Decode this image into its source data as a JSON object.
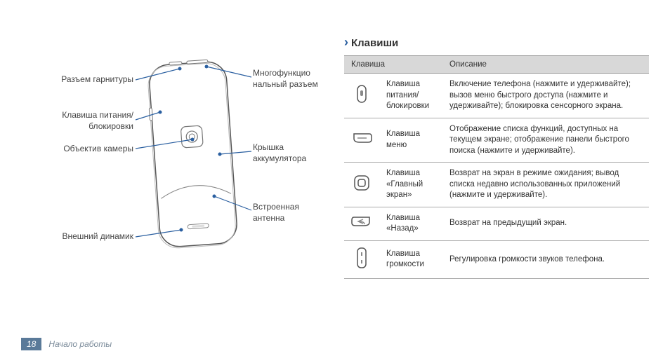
{
  "diagram": {
    "labels": {
      "headset": "Разъем гарнитуры",
      "powerkey": "Клавиша питания/\nблокировки",
      "camera": "Объектив камеры",
      "extspk": "Внешний динамик",
      "multi": "Многофункцио\nнальный разъем",
      "cover": "Крышка\nаккумулятора",
      "antenna": "Встроенная\nантенна"
    }
  },
  "section_title": "Клавиши",
  "table": {
    "head_key": "Клавиша",
    "head_desc": "Описание",
    "rows": [
      {
        "icon": "power",
        "name": "Клавиша питания/\nблокировки",
        "desc": "Включение телефона (нажмите и удерживайте); вызов меню быстрого доступа (нажмите и удерживайте); блокировка сенсорного экрана."
      },
      {
        "icon": "menu",
        "name": "Клавиша меню",
        "desc": "Отображение списка функций, доступных на текущем экране; отображение панели быстрого поиска (нажмите и удерживайте)."
      },
      {
        "icon": "home",
        "name": "Клавиша «Главный экран»",
        "desc": "Возврат на экран в режиме ожидания; вывод списка недавно использованных приложений (нажмите и удерживайте)."
      },
      {
        "icon": "back",
        "name": "Клавиша «Назад»",
        "desc": "Возврат на предыдущий экран."
      },
      {
        "icon": "volume",
        "name": "Клавиша громкости",
        "desc": "Регулировка громкости звуков телефона."
      }
    ]
  },
  "footer": {
    "page": "18",
    "section": "Начало работы"
  }
}
